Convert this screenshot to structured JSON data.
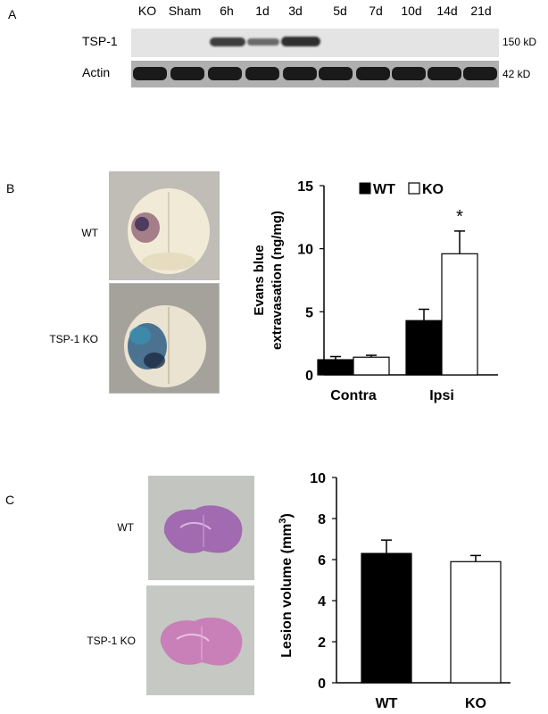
{
  "panelA": {
    "letter": "A",
    "lanes": [
      "KO",
      "Sham",
      "6h",
      "1d",
      "3d",
      "5d",
      "7d",
      "10d",
      "14d",
      "21d"
    ],
    "rows": [
      {
        "label": "TSP-1",
        "kd": "150 kD"
      },
      {
        "label": "Actin",
        "kd": "42 kD"
      }
    ]
  },
  "panelB": {
    "letter": "B",
    "photo_labels": [
      "WT",
      "TSP-1 KO"
    ],
    "chart_data": {
      "type": "bar",
      "categories": [
        "Contra",
        "Ipsi"
      ],
      "series": [
        {
          "name": "WT",
          "values": [
            1.2,
            4.3
          ],
          "errors": [
            0.25,
            0.9
          ],
          "color": "#000000"
        },
        {
          "name": "KO",
          "values": [
            1.4,
            9.6
          ],
          "errors": [
            0.15,
            1.8
          ],
          "color": "#ffffff"
        }
      ],
      "ylabel_lines": [
        "Evans blue",
        "extravasation (ng/mg)"
      ],
      "yticks": [
        "0",
        "5",
        "10",
        "15"
      ],
      "ylim": [
        0,
        15
      ],
      "annotation": "*",
      "legend": {
        "wt": "WT",
        "ko": "KO"
      }
    }
  },
  "panelC": {
    "letter": "C",
    "photo_labels": [
      "WT",
      "TSP-1 KO"
    ],
    "chart_data": {
      "type": "bar",
      "categories": [
        "WT",
        "KO"
      ],
      "values": [
        6.3,
        5.9
      ],
      "errors": [
        0.65,
        0.3
      ],
      "colors": [
        "#000000",
        "#ffffff"
      ],
      "ylabel": "Lesion volume (mm",
      "ylabel_sup": "3",
      "ylabel_end": ")",
      "yticks": [
        "0",
        "2",
        "4",
        "6",
        "8",
        "10"
      ],
      "ylim": [
        0,
        10
      ]
    }
  }
}
